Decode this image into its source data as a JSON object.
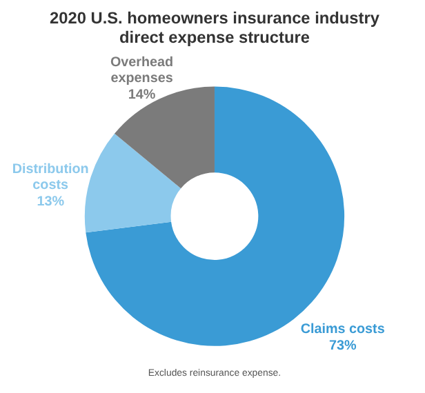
{
  "chart_data": {
    "type": "donut",
    "title": "2020 U.S. homeowners insurance industry direct expense structure",
    "categories": [
      "Claims costs",
      "Distribution costs",
      "Overhead expenses"
    ],
    "values": [
      73,
      13,
      14
    ],
    "colors": [
      "#3a9bd5",
      "#8cc9ec",
      "#7b7b7b"
    ],
    "value_labels": [
      "73%",
      "13%",
      "14%"
    ],
    "annotations": [
      "Excludes reinsurance expense."
    ]
  }
}
